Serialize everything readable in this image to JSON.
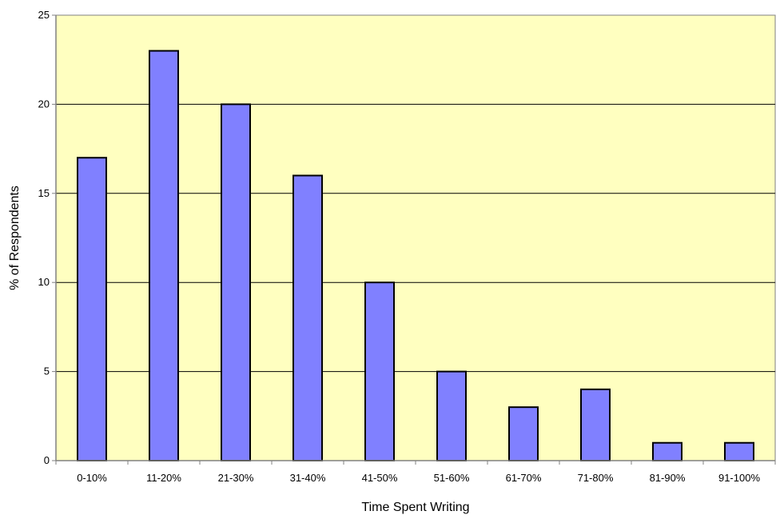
{
  "chart_data": {
    "type": "bar",
    "title": "",
    "xlabel": "Time Spent Writing",
    "ylabel": "% of Respondents",
    "categories": [
      "0-10%",
      "11-20%",
      "21-30%",
      "31-40%",
      "41-50%",
      "51-60%",
      "61-70%",
      "71-80%",
      "81-90%",
      "91-100%"
    ],
    "values": [
      17,
      23,
      20,
      16,
      10,
      5,
      3,
      4,
      1,
      1
    ],
    "ylim": [
      0,
      25
    ],
    "yticks": [
      0,
      5,
      10,
      15,
      20,
      25
    ],
    "grid": true,
    "legend": "none",
    "colors": {
      "plot_background": "#FFFFC0",
      "bar_fill": "#8080FF",
      "bar_stroke": "#000000",
      "gridline": "#000000",
      "axis": "#808080"
    }
  }
}
